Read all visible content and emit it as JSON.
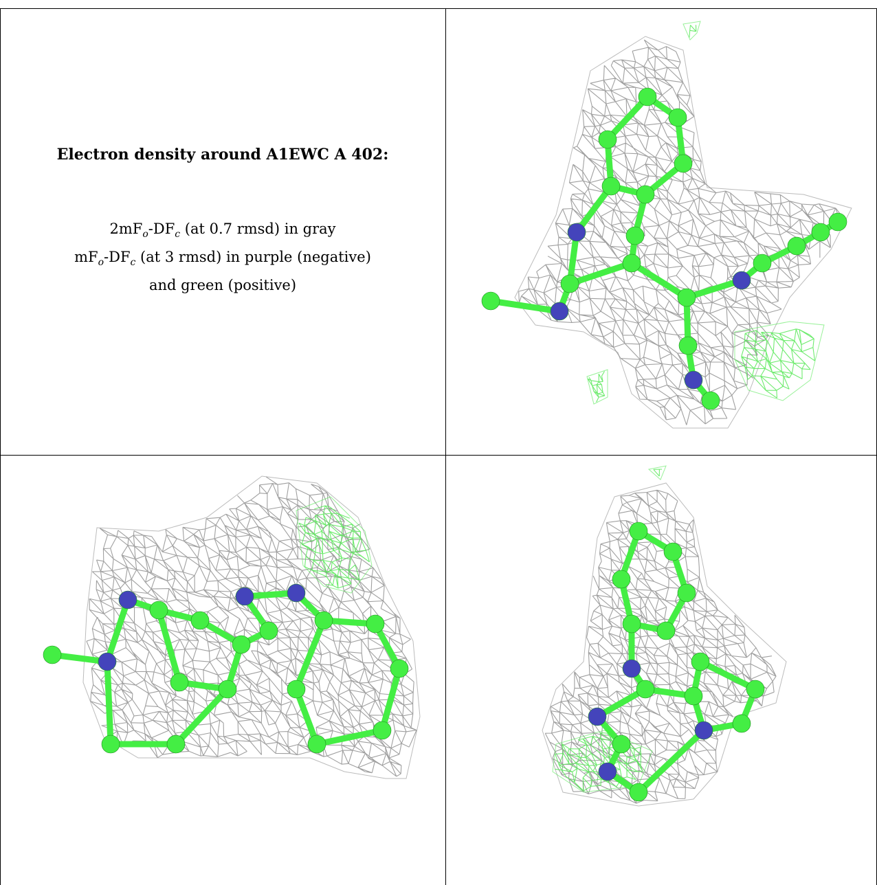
{
  "legend": {
    "title": "Electron density around A1EWC A 402:",
    "line1": {
      "a": "2mF",
      "a_sub": "o",
      "b": "-DF",
      "b_sub": "c",
      "c": " (at 0.7 rmsd) in gray"
    },
    "line2": {
      "a": "mF",
      "a_sub": "o",
      "b": "-DF",
      "b_sub": "c",
      "c": " (at 3 rmsd) in purple (negative)"
    },
    "line3": "and green (positive)"
  },
  "colors": {
    "mesh_gray": "#8e8e8e",
    "mesh_green": "#55e855",
    "carbon": "#44ee44",
    "nitrogen": "#4444bb",
    "border": "#000000"
  },
  "panels": [
    {
      "name": "view-top-right"
    },
    {
      "name": "view-bottom-left"
    },
    {
      "name": "view-bottom-right"
    }
  ]
}
